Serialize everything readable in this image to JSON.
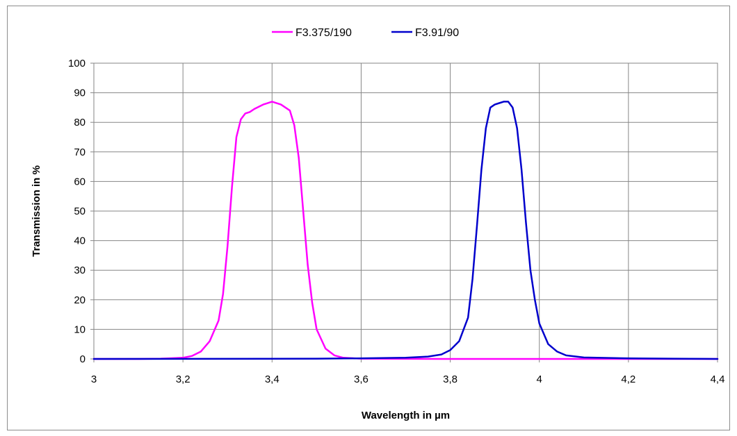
{
  "chart_data": {
    "type": "line",
    "title": "",
    "xlabel": "Wavelength in µm",
    "ylabel": "Transmission in %",
    "xlim": [
      3,
      4.4
    ],
    "ylim": [
      0,
      100
    ],
    "x_ticks": [
      "3",
      "3,2",
      "3,4",
      "3,6",
      "3,8",
      "4",
      "4,2",
      "4,4"
    ],
    "x_tick_values": [
      3,
      3.2,
      3.4,
      3.6,
      3.8,
      4,
      4.2,
      4.4
    ],
    "y_ticks": [
      "0",
      "10",
      "20",
      "30",
      "40",
      "50",
      "60",
      "70",
      "80",
      "90",
      "100"
    ],
    "y_tick_values": [
      0,
      10,
      20,
      30,
      40,
      50,
      60,
      70,
      80,
      90,
      100
    ],
    "grid": true,
    "legend_position": "top-center",
    "series": [
      {
        "name": "F3.375/190",
        "color": "#ff00ff",
        "x": [
          3.0,
          3.1,
          3.15,
          3.2,
          3.22,
          3.24,
          3.26,
          3.28,
          3.29,
          3.3,
          3.31,
          3.32,
          3.33,
          3.34,
          3.35,
          3.36,
          3.38,
          3.4,
          3.42,
          3.44,
          3.45,
          3.46,
          3.47,
          3.48,
          3.49,
          3.5,
          3.52,
          3.54,
          3.56,
          3.6,
          3.8,
          4.0,
          4.4
        ],
        "y": [
          0,
          0,
          0.1,
          0.4,
          1,
          2.5,
          6,
          13,
          22,
          38,
          58,
          75,
          81,
          83,
          83.5,
          84.5,
          86,
          87,
          86,
          84,
          79,
          68,
          50,
          32,
          19,
          10,
          3.5,
          1.2,
          0.4,
          0.1,
          0,
          0,
          0
        ]
      },
      {
        "name": "F3.91/90",
        "color": "#0000cc",
        "x": [
          3.0,
          3.5,
          3.6,
          3.7,
          3.75,
          3.78,
          3.8,
          3.82,
          3.84,
          3.85,
          3.86,
          3.87,
          3.88,
          3.89,
          3.9,
          3.91,
          3.92,
          3.93,
          3.94,
          3.95,
          3.96,
          3.97,
          3.98,
          3.99,
          4.0,
          4.02,
          4.04,
          4.06,
          4.1,
          4.2,
          4.3,
          4.4
        ],
        "y": [
          0,
          0.1,
          0.2,
          0.4,
          0.8,
          1.5,
          3,
          6,
          14,
          27,
          45,
          64,
          78,
          85,
          86,
          86.5,
          87,
          87,
          85,
          78,
          64,
          46,
          30,
          20,
          12,
          5,
          2.5,
          1.2,
          0.5,
          0.2,
          0.1,
          0
        ]
      }
    ]
  }
}
